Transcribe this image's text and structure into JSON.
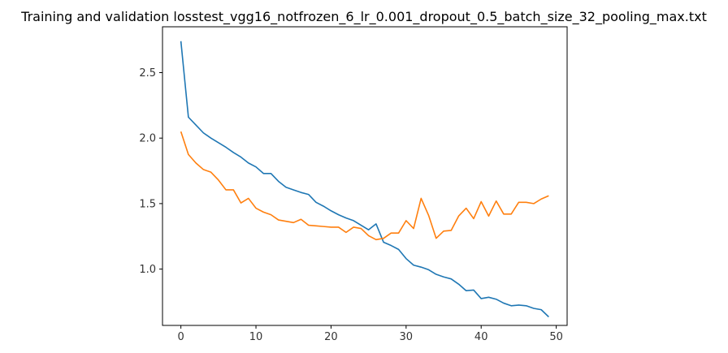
{
  "chart_data": {
    "type": "line",
    "title": "Training and validation losstest_vgg16_notfrozen_6_lr_0.001_dropout_0.5_batch_size_32_pooling_max.txt",
    "xlabel": "",
    "ylabel": "",
    "xlim": [
      -2.45,
      51.45
    ],
    "ylim": [
      0.57,
      2.85
    ],
    "xticks": [
      0,
      10,
      20,
      30,
      40,
      50
    ],
    "yticks": [
      1.0,
      1.5,
      2.0,
      2.5
    ],
    "grid": false,
    "legend": "none",
    "x": [
      0,
      1,
      2,
      3,
      4,
      5,
      6,
      7,
      8,
      9,
      10,
      11,
      12,
      13,
      14,
      15,
      16,
      17,
      18,
      19,
      20,
      21,
      22,
      23,
      24,
      25,
      26,
      27,
      28,
      29,
      30,
      31,
      32,
      33,
      34,
      35,
      36,
      37,
      38,
      39,
      40,
      41,
      42,
      43,
      44,
      45,
      46,
      47,
      48,
      49
    ],
    "series": [
      {
        "color": "#1f77b4",
        "values": [
          2.74,
          2.16,
          2.1,
          2.04,
          2.0,
          1.965,
          1.93,
          1.89,
          1.855,
          1.81,
          1.78,
          1.73,
          1.73,
          1.67,
          1.625,
          1.605,
          1.585,
          1.57,
          1.51,
          1.48,
          1.445,
          1.415,
          1.39,
          1.37,
          1.335,
          1.3,
          1.345,
          1.205,
          1.18,
          1.15,
          1.08,
          1.03,
          1.015,
          0.995,
          0.96,
          0.94,
          0.925,
          0.885,
          0.835,
          0.84,
          0.775,
          0.785,
          0.77,
          0.74,
          0.72,
          0.725,
          0.72,
          0.7,
          0.69,
          0.635
        ]
      },
      {
        "color": "#ff7f0e",
        "values": [
          2.05,
          1.875,
          1.81,
          1.76,
          1.74,
          1.68,
          1.605,
          1.605,
          1.505,
          1.54,
          1.465,
          1.435,
          1.415,
          1.375,
          1.365,
          1.355,
          1.38,
          1.335,
          1.33,
          1.325,
          1.32,
          1.32,
          1.28,
          1.32,
          1.31,
          1.255,
          1.225,
          1.235,
          1.275,
          1.275,
          1.37,
          1.31,
          1.54,
          1.41,
          1.235,
          1.29,
          1.295,
          1.405,
          1.465,
          1.385,
          1.515,
          1.405,
          1.52,
          1.42,
          1.42,
          1.51,
          1.51,
          1.5,
          1.535,
          1.56
        ]
      }
    ]
  }
}
